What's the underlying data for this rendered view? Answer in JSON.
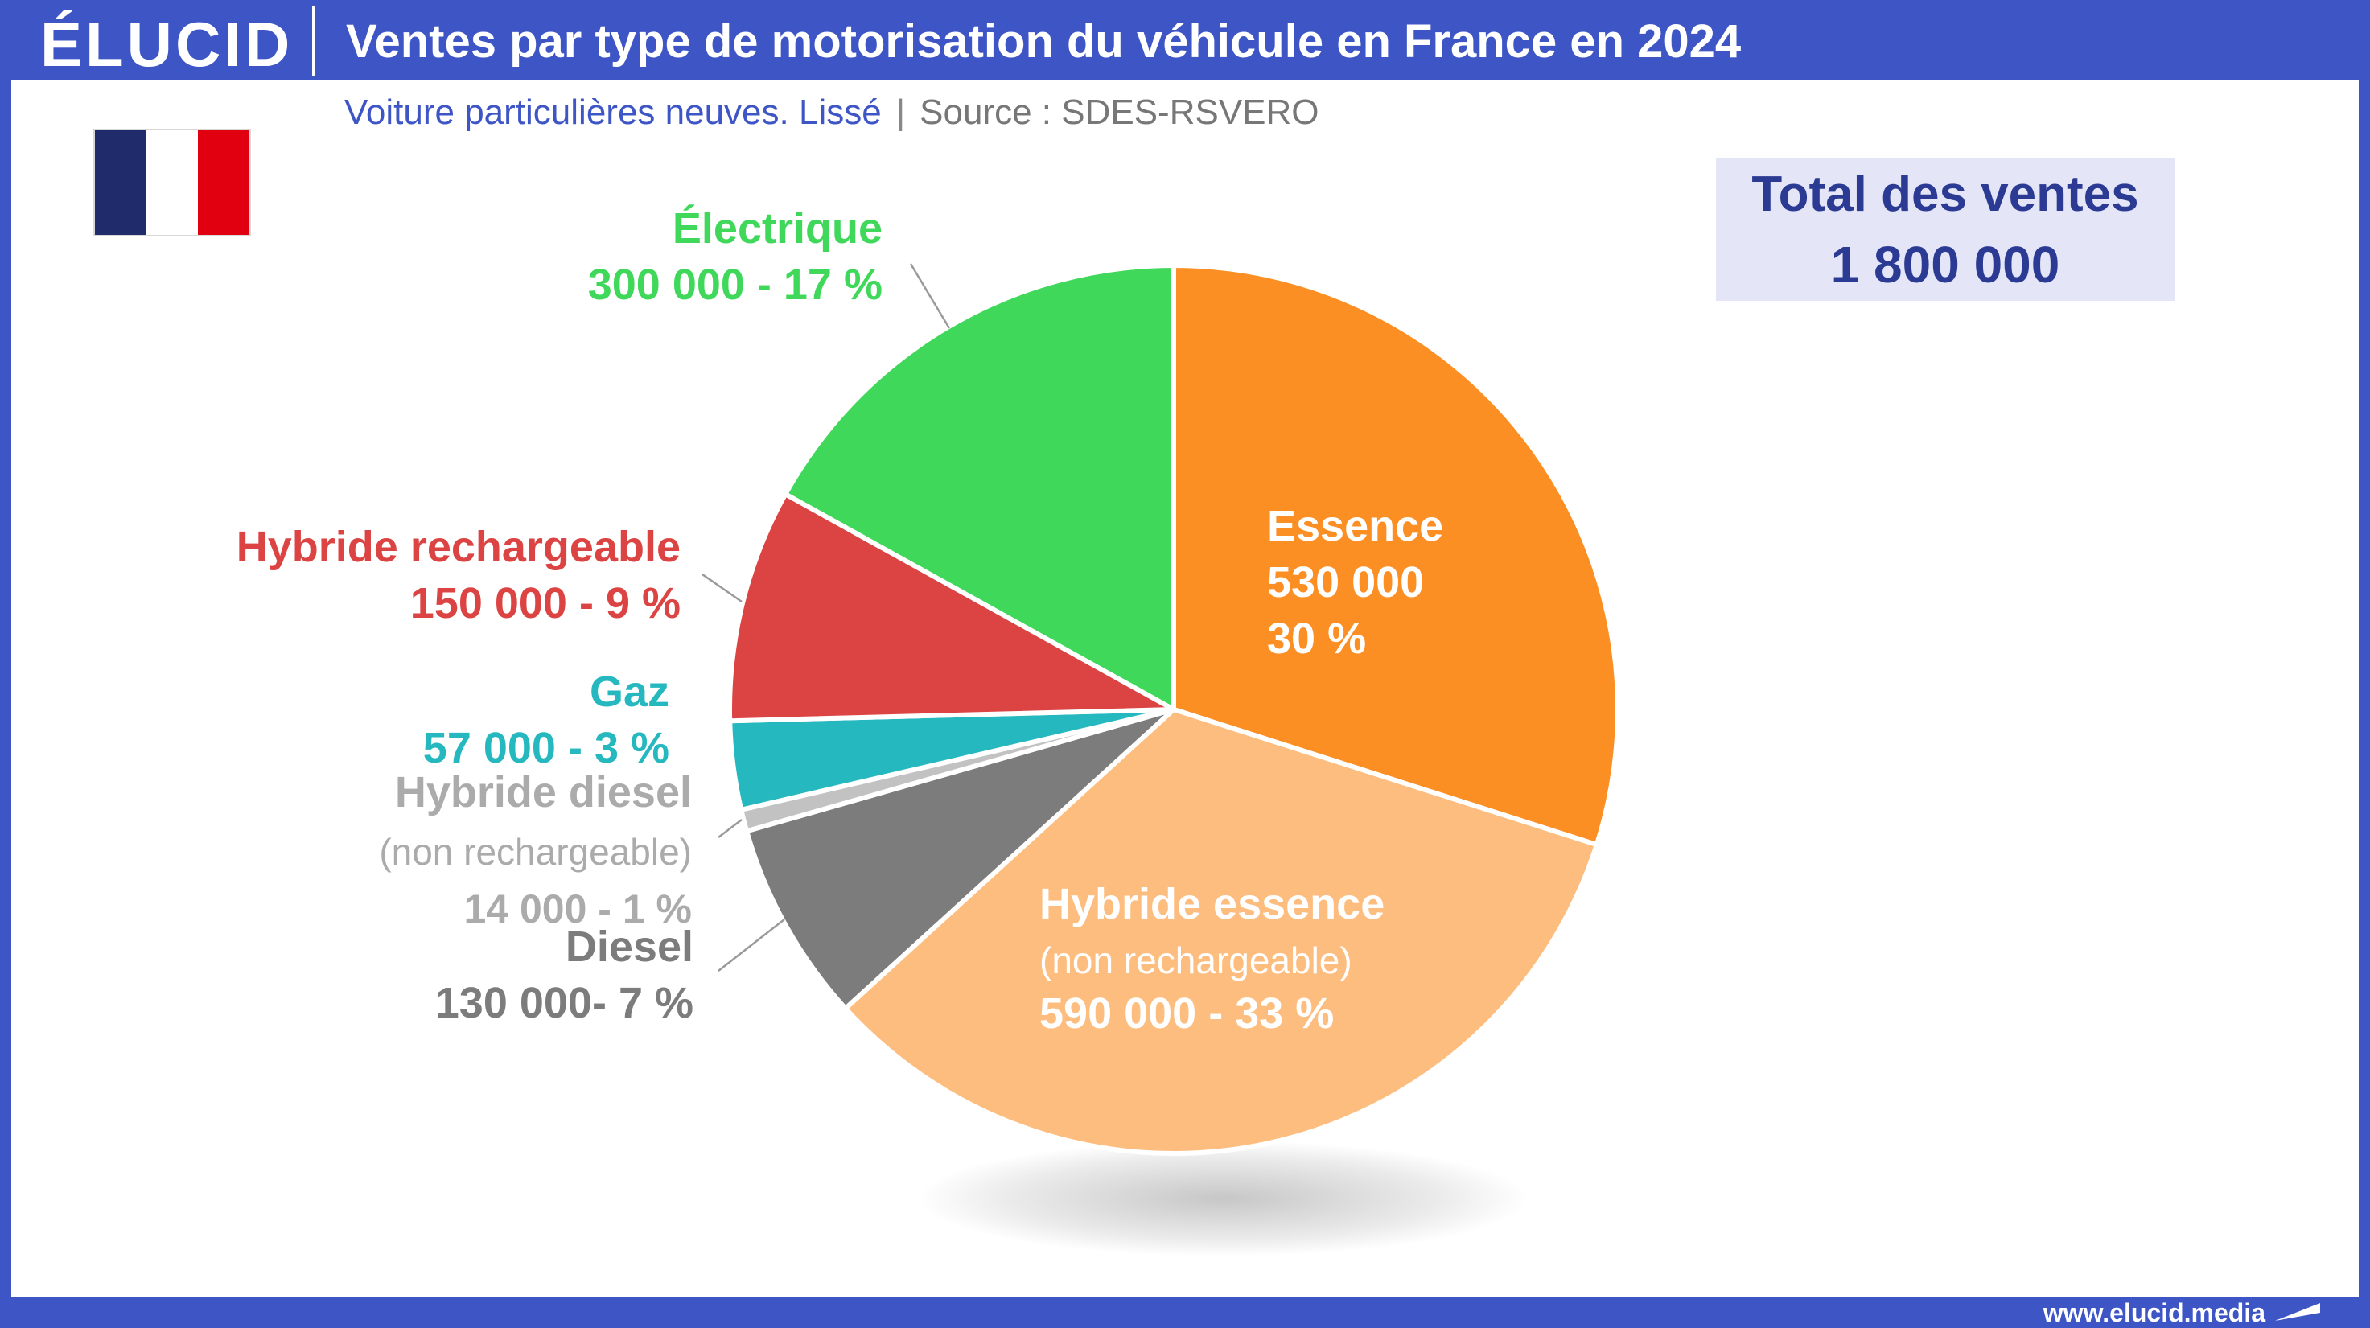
{
  "header": {
    "logo": "ÉLUCID",
    "title": "Ventes par type de motorisation du véhicule en France en 2024"
  },
  "subtitle": {
    "main": "Voiture particulières neuves. Lissé",
    "separator": "|",
    "source": "Source : SDES-RSVERO"
  },
  "flag": {
    "colors": [
      "#1f2b6b",
      "#ffffff",
      "#e1000f"
    ],
    "icon": "france-flag-icon"
  },
  "total": {
    "label": "Total des ventes",
    "value": "1 800 000"
  },
  "footer": {
    "url": "www.elucid.media"
  },
  "colors": {
    "brand": "#3e55c6"
  },
  "chart_data": {
    "type": "pie",
    "title": "Ventes par type de motorisation du véhicule en France en 2024",
    "unit": "véhicules",
    "slices": [
      {
        "name": "Essence",
        "value": 530000,
        "percent": 30,
        "color": "#fb8f24",
        "labels": [
          "Essence",
          "530 000",
          "30 %"
        ]
      },
      {
        "name": "Hybride essence (non rechargeable)",
        "value": 590000,
        "percent": 33,
        "color": "#fdbd7e",
        "labels": [
          "Hybride essence",
          "(non rechargeable)",
          "590 000 - 33 %"
        ]
      },
      {
        "name": "Diesel",
        "value": 130000,
        "percent": 7,
        "color": "#7c7c7c",
        "labels": [
          "Diesel",
          "130 000- 7 %"
        ]
      },
      {
        "name": "Hybride diesel (non rechargeable)",
        "value": 14000,
        "percent": 1,
        "color": "#c2c2c2",
        "labels": [
          "Hybride diesel",
          "(non rechargeable)",
          "14 000 - 1 %"
        ]
      },
      {
        "name": "Gaz",
        "value": 57000,
        "percent": 3,
        "color": "#26b8bf",
        "labels": [
          "Gaz",
          "57 000 - 3 %"
        ]
      },
      {
        "name": "Hybride rechargeable",
        "value": 150000,
        "percent": 9,
        "color": "#dc4343",
        "labels": [
          "Hybride rechargeable",
          "150 000 - 9 %"
        ]
      },
      {
        "name": "Électrique",
        "value": 300000,
        "percent": 17,
        "color": "#3fd85a",
        "labels": [
          "Électrique",
          "300 000 - 17 %"
        ]
      }
    ]
  }
}
